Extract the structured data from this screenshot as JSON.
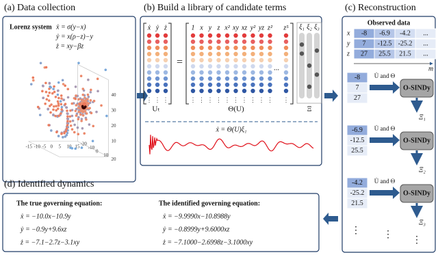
{
  "panel_a": {
    "title": "(a) Data collection",
    "label": "Lorenz system",
    "equations": [
      "ẋ = σ(y−x)",
      "ẏ = x(ρ−z)−y",
      "ż = xy−βz"
    ],
    "x_ticks": [
      -15,
      -10,
      -5,
      0,
      5,
      10,
      15
    ],
    "y_ticks": [
      -20,
      -10,
      0,
      10,
      20
    ],
    "z_ticks": [
      10,
      20,
      30,
      40
    ]
  },
  "panel_b": {
    "title": "(b) Build a library of candidate terms",
    "lhs_headers": [
      "ẋ",
      "ẏ",
      "ż"
    ],
    "equals": "=",
    "theta_headers": [
      "1",
      "x",
      "y",
      "z",
      "x²",
      "xy",
      "xz",
      "y²",
      "yz",
      "z²"
    ],
    "ellipsis": "...",
    "last_header": "z⁵",
    "xi_headers": [
      "ξ₁",
      "ξ₂",
      "ξ₃"
    ],
    "lhs_label": "Uₜ",
    "theta_label": "Θ(U)",
    "xi_label": "Ξ",
    "equation": "ẋ = Θ(U)ξ₁"
  },
  "panel_c": {
    "title": "(c) Reconstruction",
    "observed": {
      "title": "Observed data",
      "row_labels": [
        "x",
        "y",
        "z"
      ],
      "rows": [
        [
          "-8",
          "-6.9",
          "-4.2",
          "..."
        ],
        [
          "7",
          "-12.5",
          "-25.2",
          "..."
        ],
        [
          "27",
          "25.5",
          "21.5",
          "..."
        ]
      ],
      "m_label": "m"
    },
    "steps": [
      {
        "vector": [
          "-8",
          "7",
          "27"
        ],
        "input": "U̇ and Θ",
        "box": "O-SINDy",
        "output": "Ξ₁"
      },
      {
        "vector": [
          "-6.9",
          "-12.5",
          "25.5"
        ],
        "input": "U̇ and Θ",
        "box": "O-SINDy",
        "output": "Ξ₂"
      },
      {
        "vector": [
          "-4.2",
          "-25.2",
          "21.5"
        ],
        "input": "U̇ and Θ",
        "box": "O-SINDy",
        "output": "Ξ₃"
      }
    ]
  },
  "panel_d": {
    "title": "(d) Identified dynamics",
    "true_heading": "The true governing equation:",
    "true_equations": [
      "ẋ = −10.0x−10.9y",
      "ẏ = −0.9y+9.6xz",
      "ż = −7.1−2.7z−3.1xy"
    ],
    "identified_heading": "The identified governing equation:",
    "identified_equations": [
      "ẋ = −9.9990x−10.8988y",
      "ẏ = −0.8999y+9.6000xz",
      "ż = −7.1000−2.6998z−3.1000xy"
    ]
  }
}
